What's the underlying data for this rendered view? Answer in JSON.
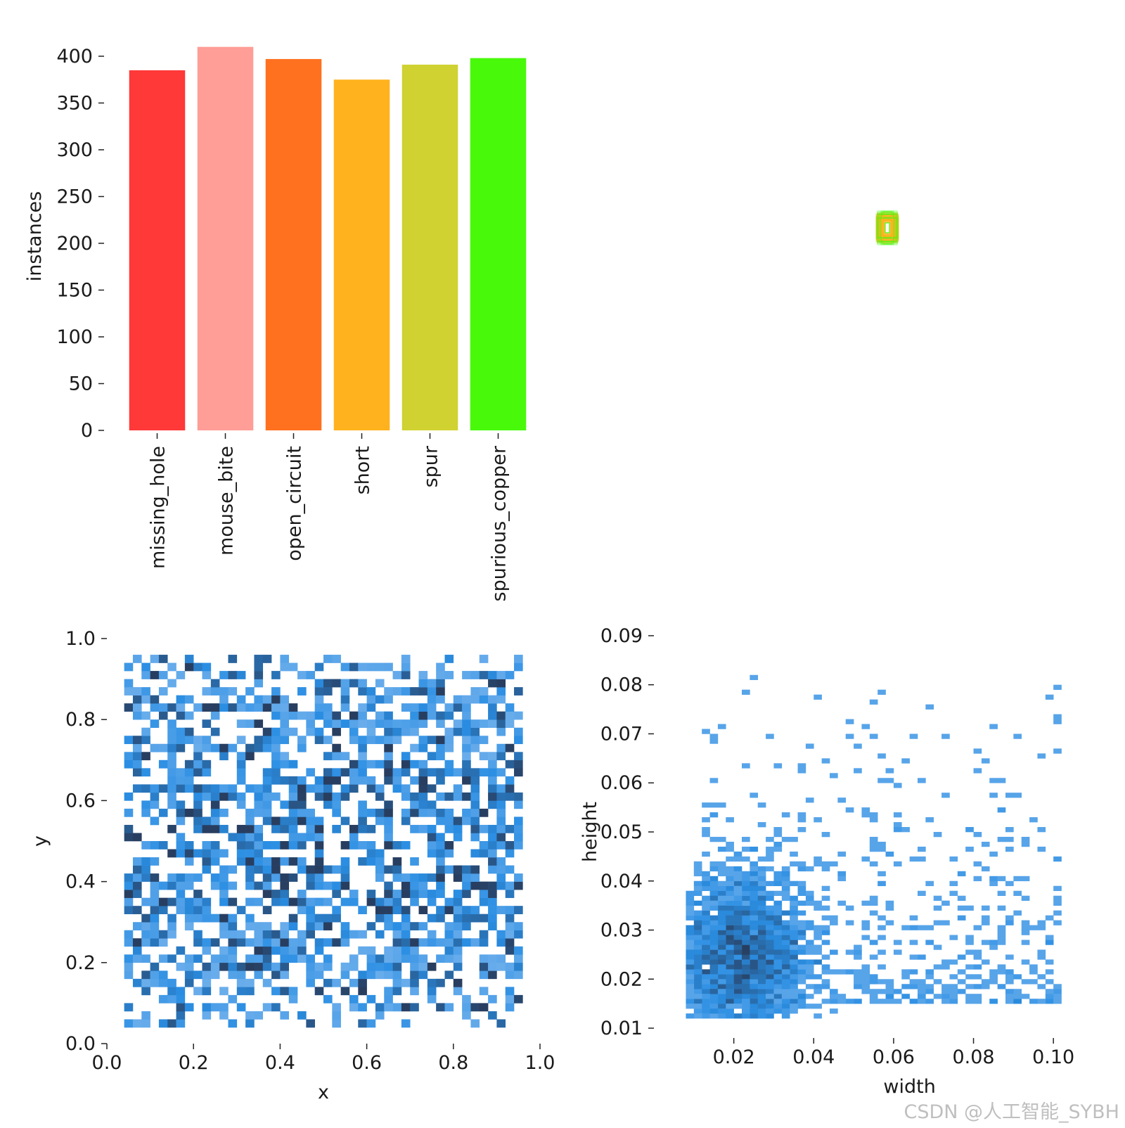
{
  "chart_data": [
    {
      "type": "bar",
      "categories": [
        "missing_hole",
        "mouse_bite",
        "open_circuit",
        "short",
        "spur",
        "spurious_copper"
      ],
      "values": [
        385,
        410,
        397,
        375,
        391,
        398
      ],
      "colors": [
        "#ff3838",
        "#ff9d97",
        "#ff701f",
        "#ffb21d",
        "#cfd231",
        "#48f90a"
      ],
      "title": "",
      "xlabel": "",
      "ylabel": "instances",
      "ylim": [
        0,
        415
      ],
      "yticks": [
        0,
        50,
        100,
        150,
        200,
        250,
        300,
        350,
        400
      ],
      "grid": false
    },
    {
      "type": "image",
      "description_label": "",
      "center": [
        0.5,
        0.5
      ],
      "box_sizes": [
        [
          0.02,
          0.03
        ],
        [
          0.03,
          0.05
        ]
      ],
      "colors": [
        "#48f90a",
        "#ffb21d"
      ]
    },
    {
      "type": "heatmap",
      "xlabel": "x",
      "ylabel": "y",
      "xlim": [
        0.0,
        1.0
      ],
      "ylim": [
        0.0,
        1.0
      ],
      "xticks": [
        0.0,
        0.2,
        0.4,
        0.6,
        0.8,
        1.0
      ],
      "yticks": [
        0.0,
        0.2,
        0.4,
        0.6,
        0.8,
        1.0
      ],
      "x_range": [
        0.04,
        0.96
      ],
      "y_range": [
        0.05,
        0.96
      ],
      "bins": 50,
      "color": "#2a8ee3",
      "description": "2D histogram of box centers, roughly uniform over the board"
    },
    {
      "type": "heatmap",
      "xlabel": "width",
      "ylabel": "height",
      "xlim": [
        0.0,
        0.11
      ],
      "ylim": [
        0.008,
        0.092
      ],
      "xticks": [
        0.02,
        0.04,
        0.06,
        0.08,
        0.1
      ],
      "yticks": [
        0.01,
        0.02,
        0.03,
        0.04,
        0.05,
        0.06,
        0.07,
        0.08,
        0.09
      ],
      "xtick_labels": [
        "0.02",
        "0.04",
        "0.06",
        "0.08",
        "0.10"
      ],
      "ytick_labels": [
        "0.01",
        "0.02",
        "0.03",
        "0.04",
        "0.05",
        "0.06",
        "0.07",
        "0.08",
        "0.09"
      ],
      "peak": [
        0.022,
        0.025
      ],
      "color": "#2a8ee3",
      "description": "2D histogram of box sizes concentrated near width 0.02, height 0.025"
    }
  ],
  "watermark": "CSDN @人工智能_SYBH"
}
